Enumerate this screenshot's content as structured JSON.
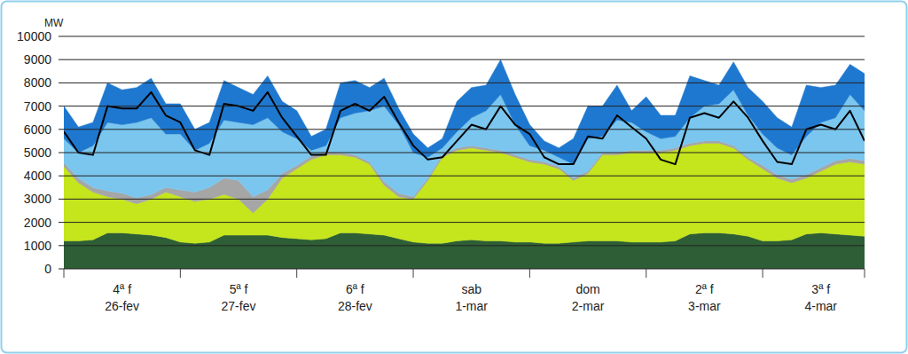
{
  "chart_data": {
    "type": "area",
    "stacked": true,
    "grid": true,
    "y_label": "MW",
    "ylim": [
      0,
      10000
    ],
    "yticks": [
      0,
      1000,
      2000,
      3000,
      4000,
      5000,
      6000,
      7000,
      8000,
      9000,
      10000
    ],
    "categories": [
      null,
      null,
      null,
      null,
      "4ª f\n26-fev",
      null,
      null,
      null,
      null,
      null,
      null,
      null,
      "5ª f\n27-fev",
      null,
      null,
      null,
      null,
      null,
      null,
      null,
      "6ª f\n28-fev",
      null,
      null,
      null,
      null,
      null,
      null,
      null,
      "sab\n1-mar",
      null,
      null,
      null,
      null,
      null,
      null,
      null,
      "dom\n2-mar",
      null,
      null,
      null,
      null,
      null,
      null,
      null,
      "2ª f\n3-mar",
      null,
      null,
      null,
      null,
      null,
      null,
      null,
      "3ª f\n4-mar",
      null,
      null,
      null
    ],
    "series": [
      {
        "color": "#2d5e36",
        "values": [
          1200,
          1200,
          1250,
          1550,
          1550,
          1500,
          1450,
          1350,
          1150,
          1100,
          1150,
          1450,
          1450,
          1450,
          1450,
          1350,
          1300,
          1250,
          1300,
          1550,
          1550,
          1500,
          1450,
          1300,
          1150,
          1100,
          1100,
          1200,
          1250,
          1200,
          1200,
          1150,
          1150,
          1100,
          1100,
          1150,
          1200,
          1200,
          1200,
          1150,
          1150,
          1150,
          1200,
          1500,
          1550,
          1550,
          1500,
          1400,
          1200,
          1200,
          1250,
          1500,
          1550,
          1500,
          1450,
          1400
        ]
      },
      {
        "color": "#c5e51c",
        "values": [
          3200,
          2500,
          2050,
          1550,
          1450,
          1300,
          1550,
          1950,
          1950,
          1800,
          1850,
          1750,
          1550,
          950,
          1550,
          2550,
          3000,
          3450,
          3600,
          3350,
          3250,
          3000,
          2150,
          1800,
          1850,
          2700,
          3700,
          3900,
          3950,
          3900,
          3800,
          3650,
          3450,
          3400,
          3200,
          2650,
          2900,
          3700,
          3700,
          3850,
          3850,
          3850,
          3900,
          3800,
          3850,
          3850,
          3700,
          3300,
          3100,
          2700,
          2450,
          2400,
          2650,
          3000,
          3150,
          3100
        ]
      },
      {
        "color": "#a6a6a6",
        "values": [
          150,
          200,
          200,
          250,
          250,
          250,
          200,
          200,
          300,
          400,
          500,
          700,
          800,
          700,
          400,
          200,
          150,
          150,
          150,
          100,
          100,
          100,
          150,
          150,
          100,
          100,
          100,
          100,
          100,
          100,
          100,
          100,
          100,
          100,
          100,
          100,
          100,
          100,
          100,
          100,
          100,
          100,
          100,
          100,
          100,
          100,
          100,
          100,
          150,
          150,
          150,
          150,
          150,
          150,
          150,
          150
        ]
      },
      {
        "color": "#7ac6ef",
        "values": [
          1050,
          1100,
          1800,
          2950,
          2950,
          3250,
          3300,
          2300,
          2400,
          1800,
          1900,
          2500,
          2500,
          3100,
          3100,
          1800,
          1150,
          250,
          250,
          1500,
          1800,
          2200,
          3250,
          2950,
          1900,
          900,
          300,
          700,
          1200,
          1600,
          2400,
          1300,
          600,
          500,
          400,
          600,
          1400,
          700,
          1400,
          1200,
          800,
          500,
          500,
          1100,
          1500,
          1600,
          2400,
          1800,
          1350,
          1150,
          1050,
          1650,
          1950,
          1850,
          2750,
          2150
        ]
      },
      {
        "color": "#1f78cf",
        "values": [
          1400,
          1100,
          1000,
          1700,
          1500,
          1500,
          1700,
          1300,
          1300,
          900,
          900,
          1700,
          1500,
          1300,
          1800,
          1300,
          1200,
          600,
          700,
          1500,
          1400,
          1000,
          1200,
          700,
          800,
          400,
          400,
          1300,
          1300,
          1100,
          1500,
          1300,
          900,
          400,
          400,
          1100,
          1400,
          1300,
          1500,
          500,
          1500,
          1000,
          900,
          1800,
          1100,
          800,
          1200,
          1200,
          1400,
          1300,
          1200,
          2200,
          1500,
          1400,
          1300,
          1600
        ]
      },
      {
        "type": "line",
        "color": "#000000",
        "values": [
          5900,
          5000,
          4900,
          7000,
          6900,
          6900,
          7600,
          6600,
          6300,
          5100,
          4900,
          7100,
          7000,
          6800,
          7600,
          6500,
          5700,
          4900,
          4900,
          6800,
          7100,
          6800,
          7400,
          6300,
          5300,
          4700,
          4800,
          5500,
          6200,
          6000,
          7000,
          6200,
          5800,
          4800,
          4500,
          4500,
          5700,
          5600,
          6600,
          6100,
          5600,
          4700,
          4500,
          6500,
          6700,
          6500,
          7200,
          6500,
          5500,
          4600,
          4500,
          6000,
          6200,
          6000,
          6800,
          5500
        ]
      }
    ]
  }
}
